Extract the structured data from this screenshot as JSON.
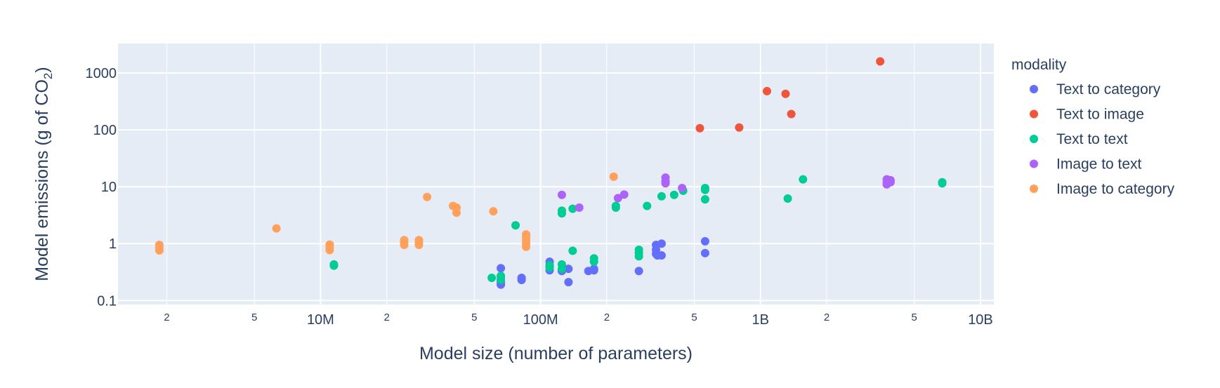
{
  "chart_data": {
    "type": "scatter",
    "x_scale": "log",
    "y_scale": "log",
    "xlabel": "Model size (number of parameters)",
    "ylabel_prefix": "Model emissions (g of CO",
    "ylabel_subscript": "2",
    "ylabel_suffix": ")",
    "xlim": [
      1200000,
      11500000000
    ],
    "ylim": [
      0.085,
      3300
    ],
    "grid": true,
    "legend_title": "modality",
    "legend_position": "right",
    "background": "#e5ecf6",
    "x_ticks_major": [
      {
        "value": 10000000,
        "label": "10M"
      },
      {
        "value": 100000000,
        "label": "100M"
      },
      {
        "value": 1000000000,
        "label": "1B"
      },
      {
        "value": 10000000000,
        "label": "10B"
      }
    ],
    "x_ticks_minor": [
      {
        "value": 2000000,
        "label": "2"
      },
      {
        "value": 5000000,
        "label": "5"
      },
      {
        "value": 20000000,
        "label": "2"
      },
      {
        "value": 50000000,
        "label": "5"
      },
      {
        "value": 200000000,
        "label": "2"
      },
      {
        "value": 500000000,
        "label": "5"
      },
      {
        "value": 2000000000,
        "label": "2"
      },
      {
        "value": 5000000000,
        "label": "5"
      }
    ],
    "y_ticks": [
      {
        "value": 0.1,
        "label": "0.1"
      },
      {
        "value": 1,
        "label": "1"
      },
      {
        "value": 10,
        "label": "10"
      },
      {
        "value": 100,
        "label": "100"
      },
      {
        "value": 1000,
        "label": "1000"
      }
    ],
    "series": [
      {
        "name": "Text to category",
        "color": "#636efa",
        "points": [
          [
            66000000,
            0.37
          ],
          [
            66000000,
            0.27
          ],
          [
            66000000,
            0.24
          ],
          [
            66000000,
            0.22
          ],
          [
            66000000,
            0.2
          ],
          [
            66000000,
            0.19
          ],
          [
            82000000,
            0.25
          ],
          [
            82000000,
            0.23
          ],
          [
            110000000,
            0.48
          ],
          [
            110000000,
            0.4
          ],
          [
            110000000,
            0.34
          ],
          [
            125000000,
            0.35
          ],
          [
            125000000,
            0.33
          ],
          [
            134000000,
            0.36
          ],
          [
            134000000,
            0.21
          ],
          [
            165000000,
            0.33
          ],
          [
            175000000,
            0.36
          ],
          [
            175000000,
            0.34
          ],
          [
            280000000,
            0.33
          ],
          [
            335000000,
            0.95
          ],
          [
            335000000,
            0.78
          ],
          [
            335000000,
            0.66
          ],
          [
            340000000,
            0.62
          ],
          [
            355000000,
            1.0
          ],
          [
            355000000,
            0.62
          ],
          [
            560000000,
            1.1
          ],
          [
            560000000,
            0.68
          ]
        ]
      },
      {
        "name": "Text to image",
        "color": "#ef553b",
        "points": [
          [
            530000000,
            107
          ],
          [
            800000000,
            110
          ],
          [
            1070000000,
            480
          ],
          [
            1300000000,
            430
          ],
          [
            1380000000,
            190
          ],
          [
            3500000000,
            1600
          ]
        ]
      },
      {
        "name": "Text to text",
        "color": "#00cc96",
        "points": [
          [
            11500000,
            0.43
          ],
          [
            11500000,
            0.41
          ],
          [
            60000000,
            0.25
          ],
          [
            66000000,
            0.27
          ],
          [
            66000000,
            0.23
          ],
          [
            77000000,
            2.1
          ],
          [
            110000000,
            0.42
          ],
          [
            110000000,
            0.38
          ],
          [
            125000000,
            3.8
          ],
          [
            125000000,
            3.4
          ],
          [
            125000000,
            0.43
          ],
          [
            125000000,
            0.36
          ],
          [
            140000000,
            4.1
          ],
          [
            140000000,
            0.75
          ],
          [
            175000000,
            0.55
          ],
          [
            175000000,
            0.48
          ],
          [
            220000000,
            4.6
          ],
          [
            220000000,
            4.3
          ],
          [
            280000000,
            0.78
          ],
          [
            280000000,
            0.68
          ],
          [
            280000000,
            0.6
          ],
          [
            305000000,
            4.6
          ],
          [
            355000000,
            6.8
          ],
          [
            405000000,
            7.2
          ],
          [
            445000000,
            8.5
          ],
          [
            560000000,
            9.5
          ],
          [
            560000000,
            8.8
          ],
          [
            560000000,
            6.0
          ],
          [
            1330000000,
            6.2
          ],
          [
            1560000000,
            13.5
          ],
          [
            6700000000,
            12
          ],
          [
            6700000000,
            11.5
          ]
        ]
      },
      {
        "name": "Image to text",
        "color": "#ab63fa",
        "points": [
          [
            125000000,
            7.2
          ],
          [
            150000000,
            4.3
          ],
          [
            225000000,
            6.3
          ],
          [
            240000000,
            7.3
          ],
          [
            370000000,
            14.5
          ],
          [
            370000000,
            12.5
          ],
          [
            370000000,
            11.5
          ],
          [
            440000000,
            9.5
          ],
          [
            3750000000,
            13.5
          ],
          [
            3750000000,
            12
          ],
          [
            3750000000,
            11
          ],
          [
            3900000000,
            13
          ],
          [
            3900000000,
            12
          ]
        ]
      },
      {
        "name": "Image to category",
        "color": "#ffa15a",
        "points": [
          [
            1850000,
            0.95
          ],
          [
            1850000,
            0.85
          ],
          [
            1850000,
            0.76
          ],
          [
            6300000,
            1.85
          ],
          [
            11000000,
            0.96
          ],
          [
            11000000,
            0.85
          ],
          [
            11000000,
            0.77
          ],
          [
            24000000,
            1.15
          ],
          [
            24000000,
            1.05
          ],
          [
            24000000,
            0.95
          ],
          [
            28000000,
            1.15
          ],
          [
            28000000,
            1.05
          ],
          [
            28000000,
            0.95
          ],
          [
            30500000,
            6.6
          ],
          [
            40000000,
            4.6
          ],
          [
            41500000,
            4.3
          ],
          [
            41500000,
            3.5
          ],
          [
            61000000,
            3.7
          ],
          [
            86000000,
            1.45
          ],
          [
            86000000,
            1.3
          ],
          [
            86000000,
            1.15
          ],
          [
            86000000,
            1.0
          ],
          [
            86000000,
            0.88
          ],
          [
            215000000,
            15
          ]
        ]
      }
    ]
  }
}
